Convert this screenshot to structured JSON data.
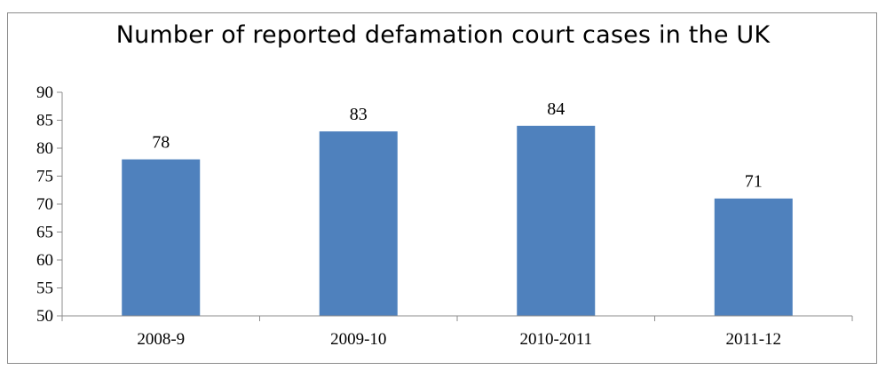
{
  "chart_data": {
    "type": "bar",
    "title": "Number of reported defamation court cases in the UK",
    "categories": [
      "2008-9",
      "2009-10",
      "2010-2011",
      "2011-12"
    ],
    "values": [
      78,
      83,
      84,
      71
    ],
    "data_labels": [
      "78",
      "83",
      "84",
      "71"
    ],
    "ylim": [
      50,
      90
    ],
    "yticks": [
      50,
      55,
      60,
      65,
      70,
      75,
      80,
      85,
      90
    ],
    "grid": false,
    "legend": "none",
    "bar_color": "#4f81bd"
  }
}
